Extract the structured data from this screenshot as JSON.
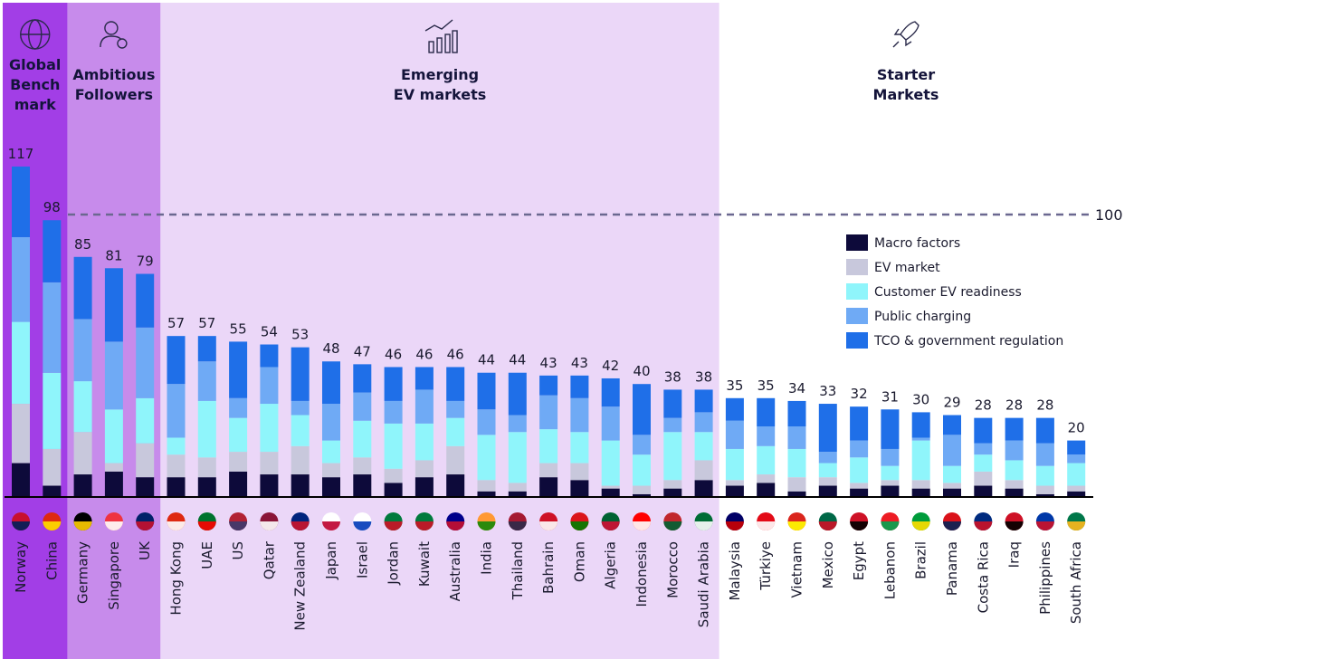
{
  "chart_data": {
    "type": "stacked_bar",
    "groups": [
      {
        "title": [
          "Global",
          "Bench",
          "mark"
        ],
        "color": "#a23ee6",
        "categories": [
          "Norway",
          "China"
        ]
      },
      {
        "title": [
          "Ambitious",
          "Followers"
        ],
        "color": "#c78beb",
        "categories": [
          "Germany",
          "Singapore",
          "UK"
        ]
      },
      {
        "title": [
          "Emerging",
          "EV markets"
        ],
        "color": "#ebd7f8",
        "categories": [
          "Hong Kong",
          "UAE",
          "US",
          "Qatar",
          "New Zealand",
          "Japan",
          "Israel",
          "Jordan",
          "Kuwait",
          "Australia",
          "India",
          "Thailand",
          "Bahrain",
          "Oman",
          "Algeria",
          "Indonesia",
          "Morocco",
          "Saudi Arabia"
        ]
      },
      {
        "title": [
          "Starter",
          "Markets"
        ],
        "color": "#ffffff",
        "categories": [
          "Malaysia",
          "Türkiye",
          "Vietnam",
          "Mexico",
          "Egypt",
          "Lebanon",
          "Brazil",
          "Panama",
          "Costa Rica",
          "Iraq",
          "Philippines",
          "South Africa"
        ]
      }
    ],
    "totals": [
      117,
      98,
      85,
      81,
      79,
      57,
      57,
      55,
      54,
      53,
      48,
      47,
      46,
      46,
      46,
      44,
      44,
      43,
      43,
      42,
      40,
      38,
      38,
      35,
      35,
      34,
      33,
      32,
      31,
      30,
      29,
      28,
      28,
      28,
      20
    ],
    "series": [
      {
        "name": "Macro factors",
        "color": "#0d0a3a",
        "values": [
          12,
          4,
          8,
          9,
          7,
          7,
          7,
          9,
          8,
          8,
          7,
          8,
          5,
          7,
          8,
          2,
          2,
          7,
          6,
          3,
          1,
          3,
          6,
          4,
          5,
          2,
          4,
          3,
          4,
          3,
          3,
          4,
          3,
          1,
          2
        ]
      },
      {
        "name": "EV market",
        "color": "#c8c8dc",
        "values": [
          21,
          13,
          15,
          3,
          12,
          8,
          7,
          7,
          8,
          10,
          5,
          6,
          5,
          6,
          10,
          4,
          3,
          5,
          6,
          1,
          3,
          3,
          7,
          2,
          3,
          5,
          3,
          2,
          2,
          3,
          2,
          5,
          3,
          3,
          2
        ]
      },
      {
        "name": "Customer EV readiness",
        "color": "#8ff5fb",
        "values": [
          29,
          27,
          18,
          19,
          16,
          6,
          20,
          12,
          17,
          11,
          8,
          13,
          16,
          13,
          10,
          16,
          18,
          12,
          11,
          16,
          11,
          17,
          10,
          11,
          10,
          10,
          5,
          9,
          5,
          14,
          6,
          6,
          7,
          7,
          8
        ]
      },
      {
        "name": "Public charging",
        "color": "#6faaf5",
        "values": [
          30,
          32,
          22,
          24,
          25,
          19,
          14,
          7,
          13,
          5,
          13,
          10,
          8,
          12,
          6,
          9,
          6,
          12,
          12,
          12,
          7,
          5,
          7,
          10,
          7,
          8,
          4,
          6,
          6,
          1,
          11,
          4,
          7,
          8,
          3
        ]
      },
      {
        "name": "TCO & government regulation",
        "color": "#1f6fe8",
        "values": [
          25,
          22,
          22,
          26,
          19,
          17,
          9,
          20,
          8,
          19,
          15,
          10,
          12,
          8,
          12,
          13,
          15,
          7,
          8,
          10,
          18,
          10,
          8,
          8,
          10,
          9,
          17,
          12,
          14,
          9,
          7,
          9,
          8,
          9,
          5
        ]
      }
    ],
    "ylim": [
      0,
      120
    ],
    "reference_line": 100,
    "reference_color": "#6b6890",
    "legend": "right"
  }
}
